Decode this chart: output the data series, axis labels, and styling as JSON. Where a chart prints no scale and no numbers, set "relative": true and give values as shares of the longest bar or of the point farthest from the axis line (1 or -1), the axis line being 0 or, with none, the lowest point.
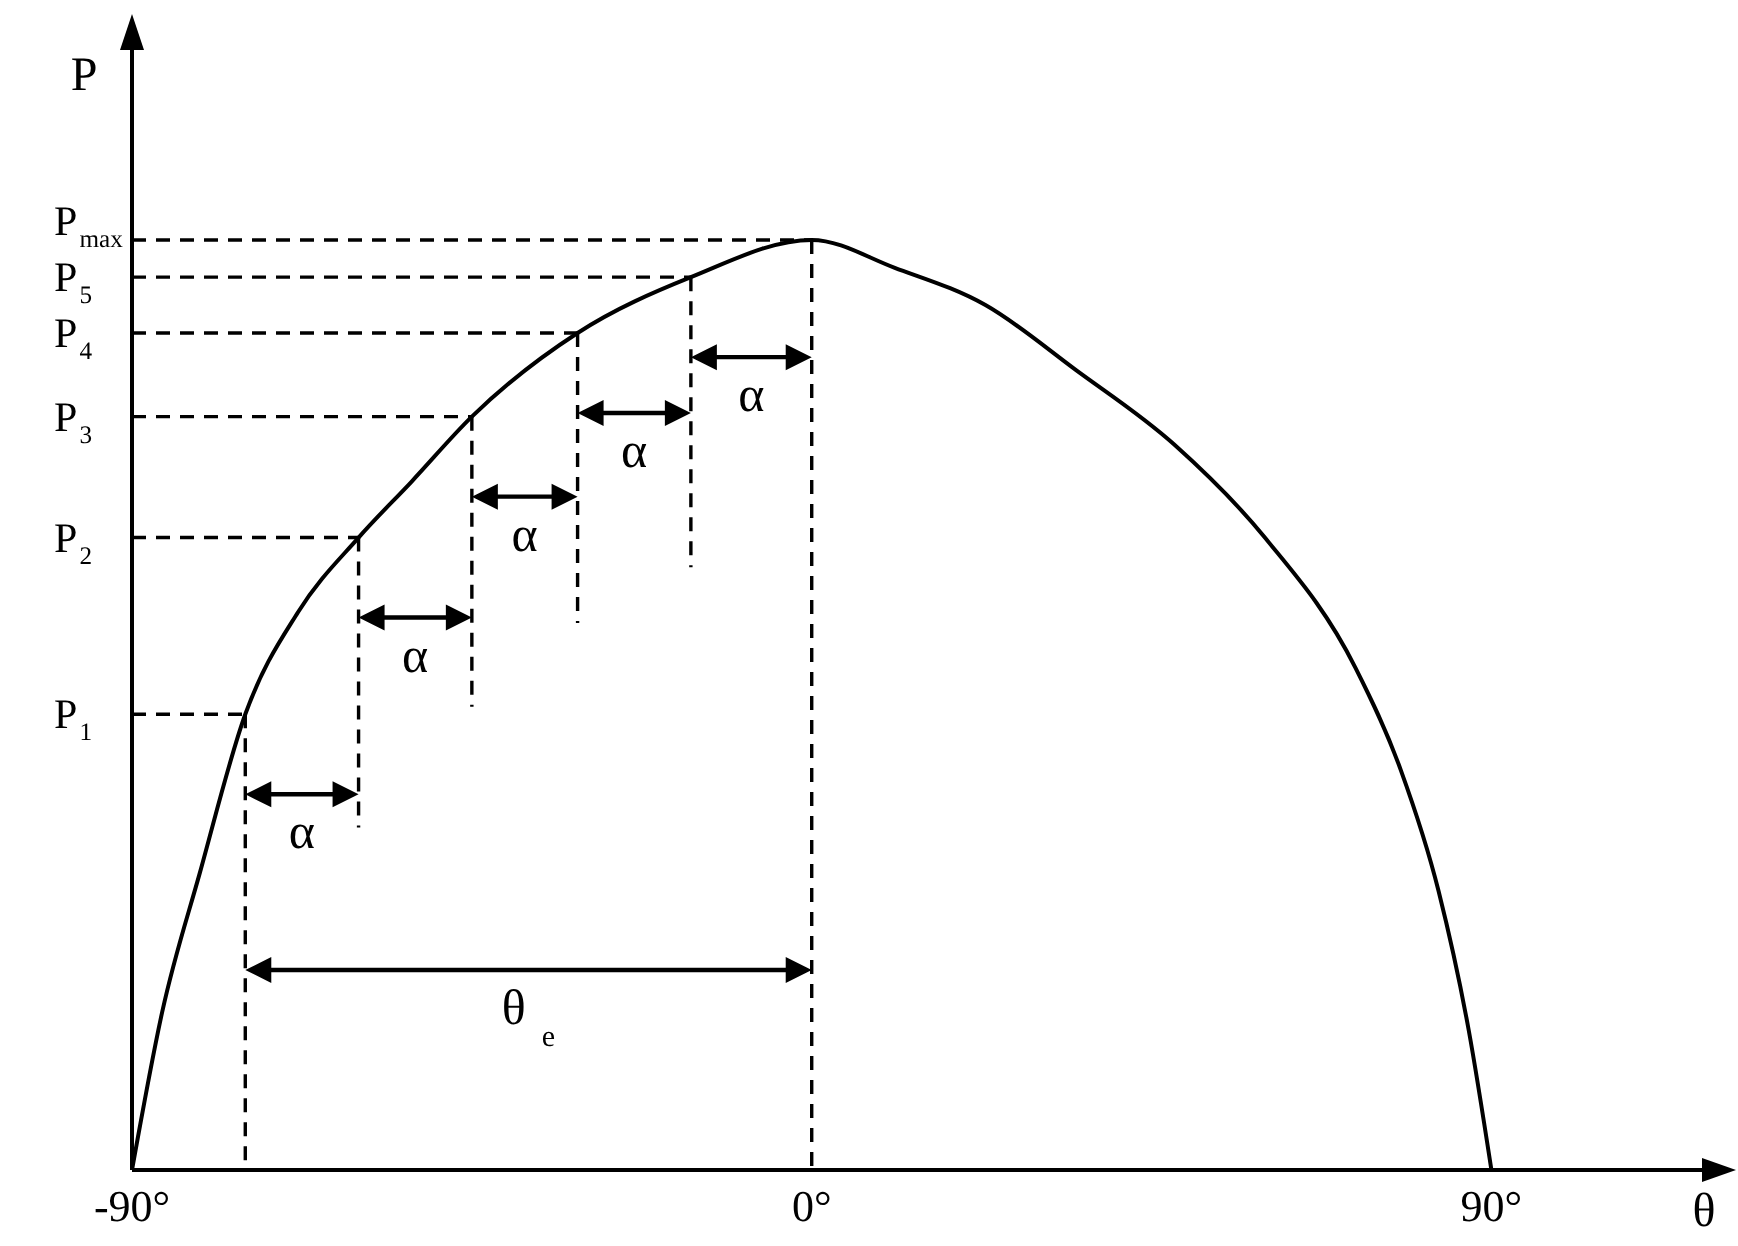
{
  "chart_data": {
    "type": "line",
    "relative": true,
    "xlabel": "θ",
    "ylabel": "P",
    "x": [
      -90,
      -86,
      -81,
      -75,
      -68,
      -60,
      -53,
      -45,
      -31,
      -16,
      0,
      11,
      23,
      35,
      48,
      60,
      72,
      78,
      83,
      87,
      90
    ],
    "values": [
      0,
      0.17,
      0.32,
      0.49,
      0.6,
      0.68,
      0.74,
      0.81,
      0.9,
      0.96,
      1,
      0.97,
      0.93,
      0.86,
      0.78,
      0.68,
      0.54,
      0.43,
      0.3,
      0.15,
      0
    ],
    "color": "#000000",
    "marker": "none",
    "line_style": "solid",
    "xlim": [
      -90,
      120
    ],
    "xticks": [
      {
        "value": -90,
        "label": "-90°"
      },
      {
        "value": 0,
        "label": "0°"
      },
      {
        "value": 90,
        "label": "90°"
      }
    ],
    "ref_lines": [
      {
        "axis": "y",
        "value": 0.49,
        "label": "P$_{1}$",
        "line_style": "dashed",
        "color": "#000000"
      },
      {
        "axis": "y",
        "value": 0.68,
        "label": "P$_{2}$",
        "line_style": "dashed",
        "color": "#000000"
      },
      {
        "axis": "y",
        "value": 0.81,
        "label": "P$_{3}$",
        "line_style": "dashed",
        "color": "#000000"
      },
      {
        "axis": "y",
        "value": 0.9,
        "label": "P$_{4}$",
        "line_style": "dashed",
        "color": "#000000"
      },
      {
        "axis": "y",
        "value": 0.96,
        "label": "P$_{5}$",
        "line_style": "dashed",
        "color": "#000000"
      },
      {
        "axis": "y",
        "value": 1,
        "label": "P$_{max}$",
        "line_style": "dashed",
        "color": "#000000"
      },
      {
        "axis": "x",
        "value": -75,
        "line_style": "dashed",
        "color": "#000000"
      },
      {
        "axis": "x",
        "value": -60,
        "line_style": "dashed",
        "color": "#000000"
      },
      {
        "axis": "x",
        "value": -45,
        "line_style": "dashed",
        "color": "#000000"
      },
      {
        "axis": "x",
        "value": -31,
        "line_style": "dashed",
        "color": "#000000"
      },
      {
        "axis": "x",
        "value": -16,
        "line_style": "dashed",
        "color": "#000000"
      },
      {
        "axis": "x",
        "value": 0,
        "line_style": "dashed",
        "color": "#000000"
      }
    ],
    "annotations": [
      "α",
      "α",
      "α",
      "α",
      "α",
      "θ$_{e}$"
    ]
  }
}
